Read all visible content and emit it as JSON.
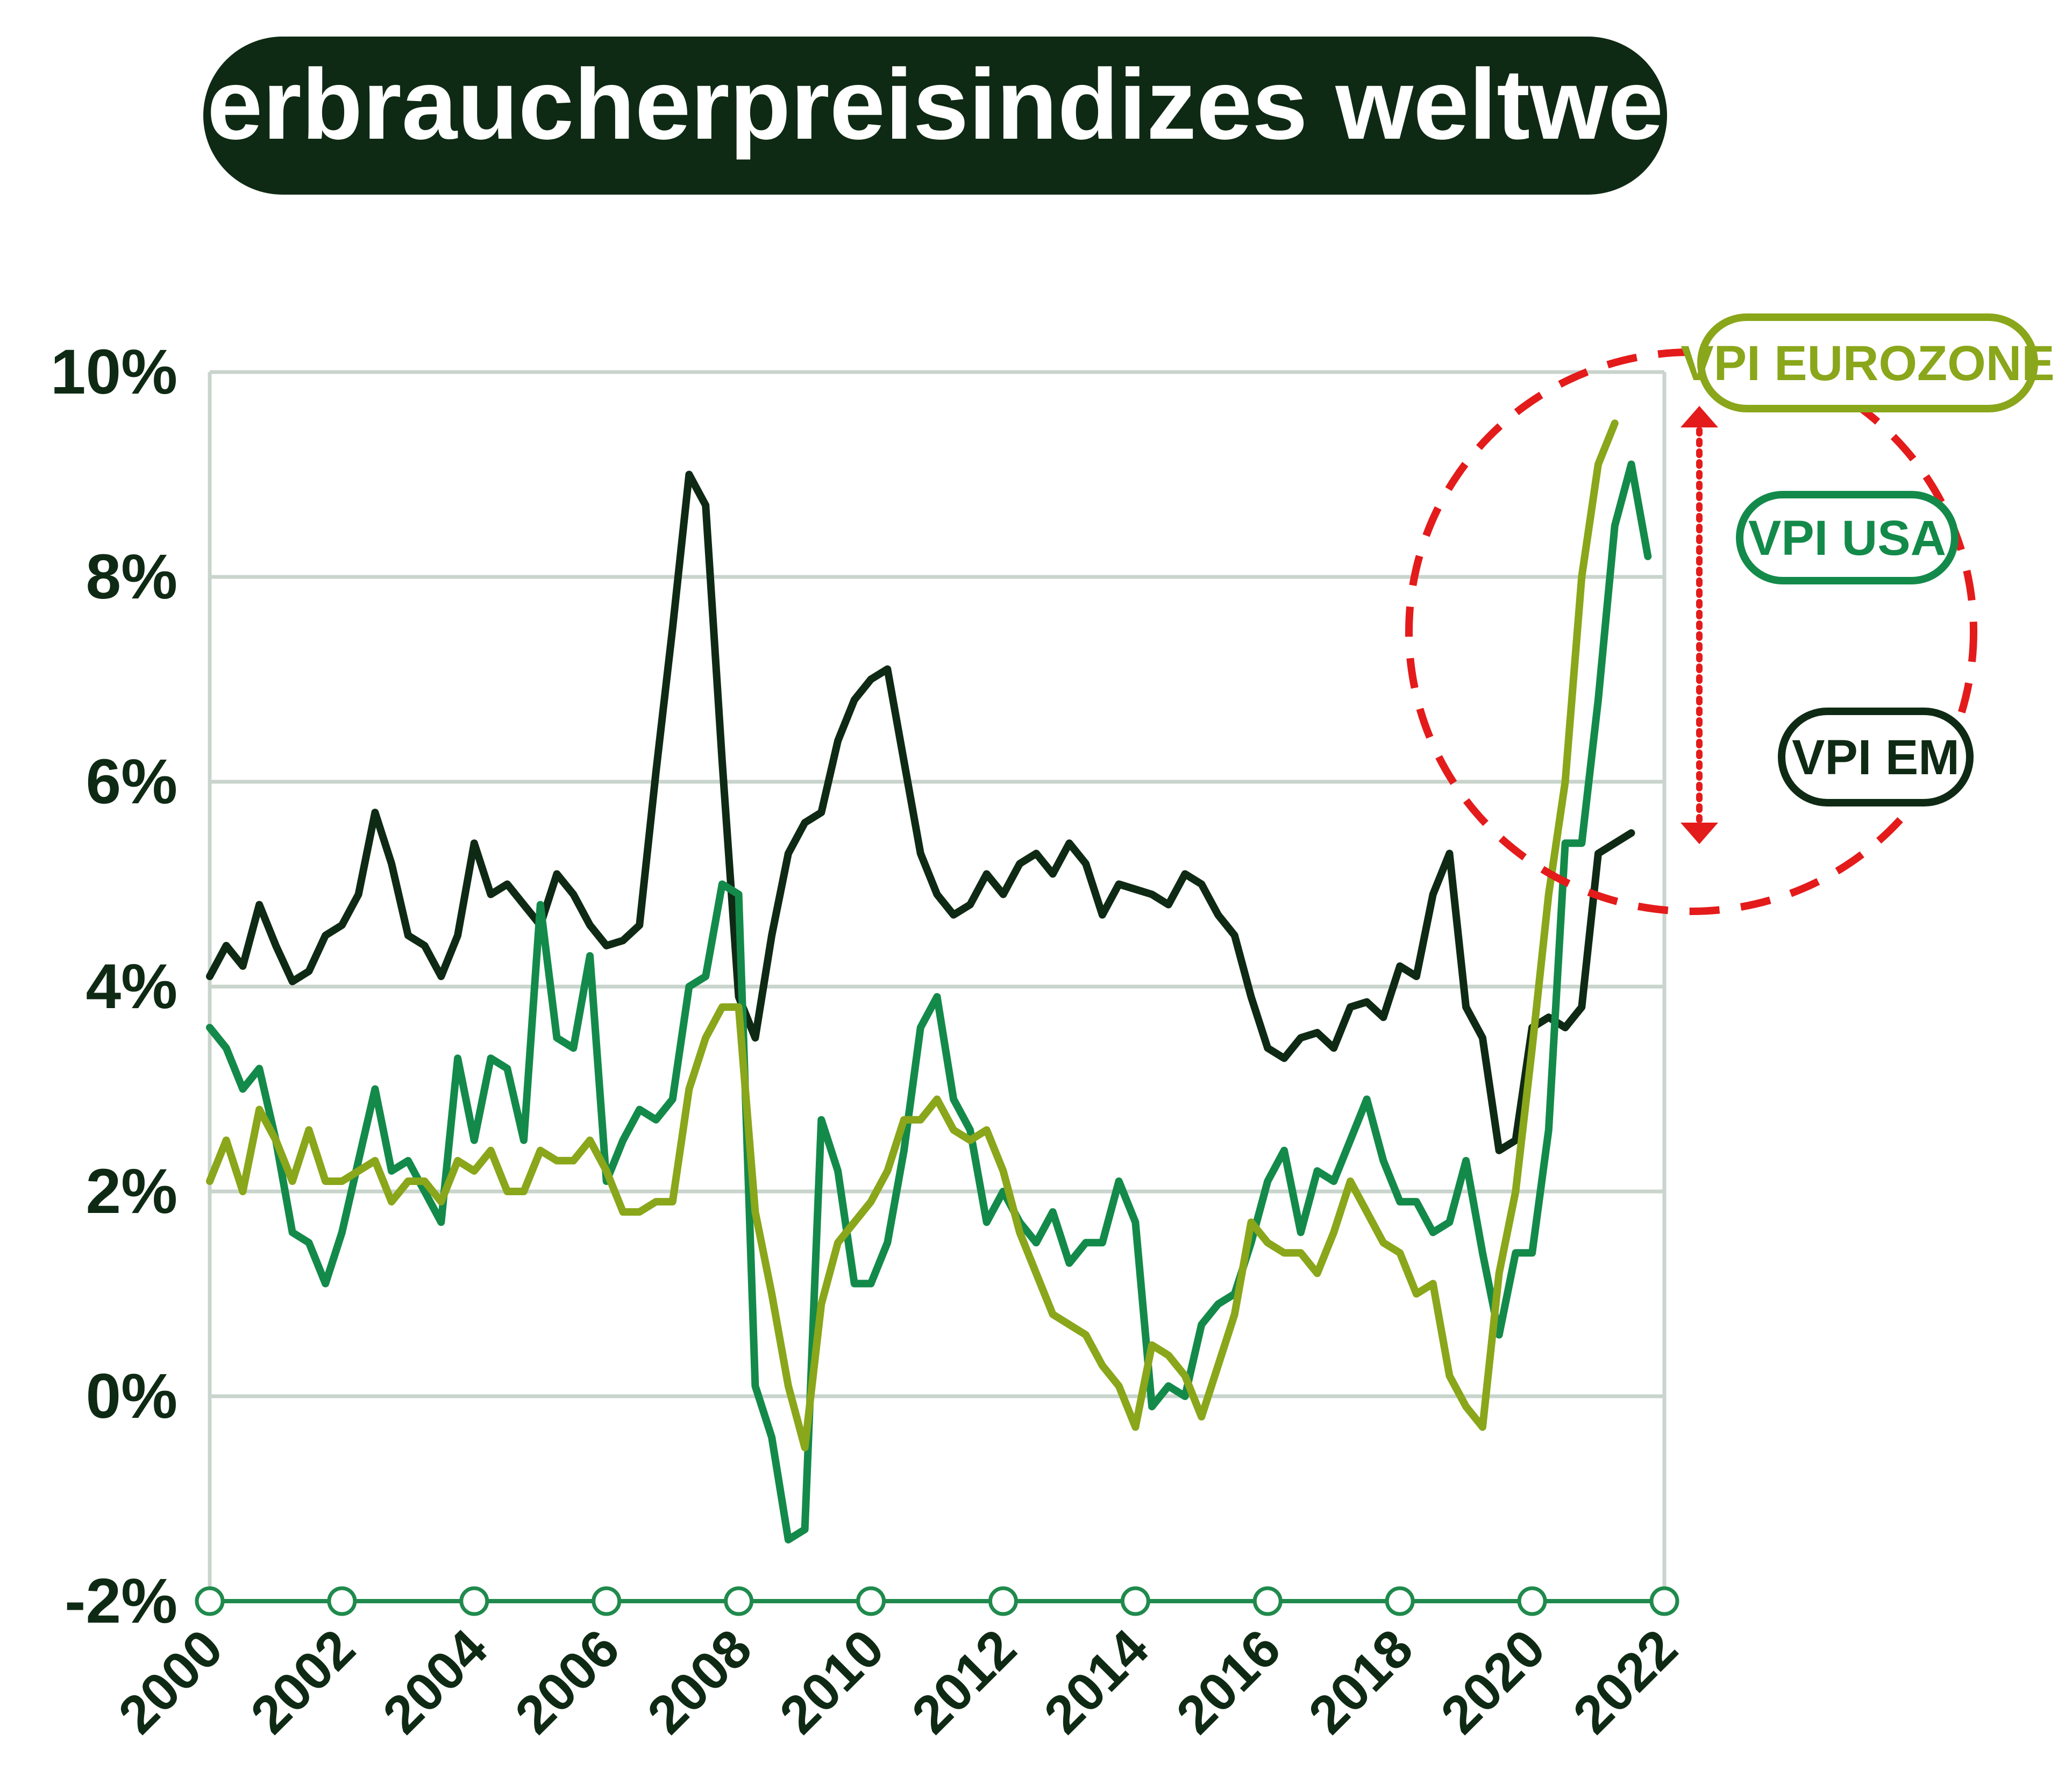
{
  "title": "Verbraucherpreisindizes weltweit",
  "colors": {
    "title_bg": "#0f2a14",
    "title_text": "#ffffff",
    "em": "#0f2a14",
    "usa": "#138a4a",
    "eurozone": "#8aa61a",
    "grid": "#c8d4cc",
    "axis": "#1f8a4c",
    "highlight": "#e41b1b"
  },
  "chart_data": {
    "type": "line",
    "title": "Verbraucherpreisindizes weltweit",
    "xlabel": "",
    "ylabel": "",
    "xlim": [
      2000,
      2022
    ],
    "ylim": [
      -2,
      10
    ],
    "y_ticks": [
      10,
      8,
      6,
      4,
      2,
      0,
      -2
    ],
    "y_tick_labels": [
      "10%",
      "8%",
      "6%",
      "4%",
      "2%",
      "0%",
      "-2%"
    ],
    "x_ticks": [
      2000,
      2002,
      2004,
      2006,
      2008,
      2010,
      2012,
      2014,
      2016,
      2018,
      2020,
      2022
    ],
    "x_tick_labels": [
      "2000",
      "2002",
      "2004",
      "2006",
      "2008",
      "2010",
      "2012",
      "2014",
      "2016",
      "2018",
      "2020",
      "2022"
    ],
    "grid": true,
    "series": [
      {
        "name": "VPI EM",
        "color": "#0f2a14",
        "points": [
          [
            2000.0,
            4.1
          ],
          [
            2000.25,
            4.4
          ],
          [
            2000.5,
            4.2
          ],
          [
            2000.75,
            4.8
          ],
          [
            2001.0,
            4.4
          ],
          [
            2001.25,
            4.05
          ],
          [
            2001.5,
            4.15
          ],
          [
            2001.75,
            4.5
          ],
          [
            2002.0,
            4.6
          ],
          [
            2002.25,
            4.9
          ],
          [
            2002.5,
            5.7
          ],
          [
            2002.75,
            5.2
          ],
          [
            2003.0,
            4.5
          ],
          [
            2003.25,
            4.4
          ],
          [
            2003.5,
            4.1
          ],
          [
            2003.75,
            4.5
          ],
          [
            2004.0,
            5.4
          ],
          [
            2004.25,
            4.9
          ],
          [
            2004.5,
            5.0
          ],
          [
            2004.75,
            4.8
          ],
          [
            2005.0,
            4.6
          ],
          [
            2005.25,
            5.1
          ],
          [
            2005.5,
            4.9
          ],
          [
            2005.75,
            4.6
          ],
          [
            2006.0,
            4.4
          ],
          [
            2006.25,
            4.45
          ],
          [
            2006.5,
            4.6
          ],
          [
            2006.75,
            6.1
          ],
          [
            2007.0,
            7.5
          ],
          [
            2007.25,
            9.0
          ],
          [
            2007.5,
            8.7
          ],
          [
            2007.75,
            6.2
          ],
          [
            2008.0,
            3.9
          ],
          [
            2008.25,
            3.5
          ],
          [
            2008.5,
            4.5
          ],
          [
            2008.75,
            5.3
          ],
          [
            2009.0,
            5.6
          ],
          [
            2009.25,
            5.7
          ],
          [
            2009.5,
            6.4
          ],
          [
            2009.75,
            6.8
          ],
          [
            2010.0,
            7.0
          ],
          [
            2010.25,
            7.1
          ],
          [
            2010.5,
            6.2
          ],
          [
            2010.75,
            5.3
          ],
          [
            2011.0,
            4.9
          ],
          [
            2011.25,
            4.7
          ],
          [
            2011.5,
            4.8
          ],
          [
            2011.75,
            5.1
          ],
          [
            2012.0,
            4.9
          ],
          [
            2012.25,
            5.2
          ],
          [
            2012.5,
            5.3
          ],
          [
            2012.75,
            5.1
          ],
          [
            2013.0,
            5.4
          ],
          [
            2013.25,
            5.2
          ],
          [
            2013.5,
            4.7
          ],
          [
            2013.75,
            5.0
          ],
          [
            2014.0,
            4.95
          ],
          [
            2014.25,
            4.9
          ],
          [
            2014.5,
            4.8
          ],
          [
            2014.75,
            5.1
          ],
          [
            2015.0,
            5.0
          ],
          [
            2015.25,
            4.7
          ],
          [
            2015.5,
            4.5
          ],
          [
            2015.75,
            3.9
          ],
          [
            2016.0,
            3.4
          ],
          [
            2016.25,
            3.3
          ],
          [
            2016.5,
            3.5
          ],
          [
            2016.75,
            3.55
          ],
          [
            2017.0,
            3.4
          ],
          [
            2017.25,
            3.8
          ],
          [
            2017.5,
            3.85
          ],
          [
            2017.75,
            3.7
          ],
          [
            2018.0,
            4.2
          ],
          [
            2018.25,
            4.1
          ],
          [
            2018.5,
            4.9
          ],
          [
            2018.75,
            5.3
          ],
          [
            2019.0,
            3.8
          ],
          [
            2019.25,
            3.5
          ],
          [
            2019.5,
            2.4
          ],
          [
            2019.75,
            2.5
          ],
          [
            2020.0,
            3.6
          ],
          [
            2020.25,
            3.7
          ],
          [
            2020.5,
            3.6
          ],
          [
            2020.75,
            3.8
          ],
          [
            2021.0,
            5.3
          ],
          [
            2021.25,
            5.4
          ],
          [
            2021.5,
            5.5
          ]
        ]
      },
      {
        "name": "VPI USA",
        "color": "#138a4a",
        "points": [
          [
            2000.0,
            3.6
          ],
          [
            2000.25,
            3.4
          ],
          [
            2000.5,
            3.0
          ],
          [
            2000.75,
            3.2
          ],
          [
            2001.0,
            2.5
          ],
          [
            2001.25,
            1.6
          ],
          [
            2001.5,
            1.5
          ],
          [
            2001.75,
            1.1
          ],
          [
            2002.0,
            1.6
          ],
          [
            2002.25,
            2.3
          ],
          [
            2002.5,
            3.0
          ],
          [
            2002.75,
            2.2
          ],
          [
            2003.0,
            2.3
          ],
          [
            2003.25,
            2.0
          ],
          [
            2003.5,
            1.7
          ],
          [
            2003.75,
            3.3
          ],
          [
            2004.0,
            2.5
          ],
          [
            2004.25,
            3.3
          ],
          [
            2004.5,
            3.2
          ],
          [
            2004.75,
            2.5
          ],
          [
            2005.0,
            4.8
          ],
          [
            2005.25,
            3.5
          ],
          [
            2005.5,
            3.4
          ],
          [
            2005.75,
            4.3
          ],
          [
            2006.0,
            2.1
          ],
          [
            2006.25,
            2.5
          ],
          [
            2006.5,
            2.8
          ],
          [
            2006.75,
            2.7
          ],
          [
            2007.0,
            2.9
          ],
          [
            2007.25,
            4.0
          ],
          [
            2007.5,
            4.1
          ],
          [
            2007.75,
            5.0
          ],
          [
            2008.0,
            4.9
          ],
          [
            2008.25,
            0.1
          ],
          [
            2008.5,
            -0.4
          ],
          [
            2008.75,
            -1.4
          ],
          [
            2009.0,
            -1.3
          ],
          [
            2009.25,
            2.7
          ],
          [
            2009.5,
            2.2
          ],
          [
            2009.75,
            1.1
          ],
          [
            2010.0,
            1.1
          ],
          [
            2010.25,
            1.5
          ],
          [
            2010.5,
            2.4
          ],
          [
            2010.75,
            3.6
          ],
          [
            2011.0,
            3.9
          ],
          [
            2011.25,
            2.9
          ],
          [
            2011.5,
            2.6
          ],
          [
            2011.75,
            1.7
          ],
          [
            2012.0,
            2.0
          ],
          [
            2012.25,
            1.7
          ],
          [
            2012.5,
            1.5
          ],
          [
            2012.75,
            1.8
          ],
          [
            2013.0,
            1.3
          ],
          [
            2013.25,
            1.5
          ],
          [
            2013.5,
            1.5
          ],
          [
            2013.75,
            2.1
          ],
          [
            2014.0,
            1.7
          ],
          [
            2014.25,
            -0.1
          ],
          [
            2014.5,
            0.1
          ],
          [
            2014.75,
            0.0
          ],
          [
            2015.0,
            0.7
          ],
          [
            2015.25,
            0.9
          ],
          [
            2015.5,
            1.0
          ],
          [
            2015.75,
            1.5
          ],
          [
            2016.0,
            2.1
          ],
          [
            2016.25,
            2.4
          ],
          [
            2016.5,
            1.6
          ],
          [
            2016.75,
            2.2
          ],
          [
            2017.0,
            2.1
          ],
          [
            2017.25,
            2.5
          ],
          [
            2017.5,
            2.9
          ],
          [
            2017.75,
            2.3
          ],
          [
            2018.0,
            1.9
          ],
          [
            2018.25,
            1.9
          ],
          [
            2018.5,
            1.6
          ],
          [
            2018.75,
            1.7
          ],
          [
            2019.0,
            2.3
          ],
          [
            2019.25,
            1.4
          ],
          [
            2019.5,
            0.6
          ],
          [
            2019.75,
            1.4
          ],
          [
            2020.0,
            1.4
          ],
          [
            2020.25,
            2.6
          ],
          [
            2020.5,
            5.4
          ],
          [
            2020.75,
            5.4
          ],
          [
            2021.0,
            6.8
          ],
          [
            2021.25,
            8.5
          ],
          [
            2021.5,
            9.1
          ],
          [
            2021.75,
            8.2
          ]
        ]
      },
      {
        "name": "VPI EUROZONE",
        "color": "#8aa61a",
        "points": [
          [
            2000.0,
            2.1
          ],
          [
            2000.25,
            2.5
          ],
          [
            2000.5,
            2.0
          ],
          [
            2000.75,
            2.8
          ],
          [
            2001.0,
            2.5
          ],
          [
            2001.25,
            2.1
          ],
          [
            2001.5,
            2.6
          ],
          [
            2001.75,
            2.1
          ],
          [
            2002.0,
            2.1
          ],
          [
            2002.25,
            2.2
          ],
          [
            2002.5,
            2.3
          ],
          [
            2002.75,
            1.9
          ],
          [
            2003.0,
            2.1
          ],
          [
            2003.25,
            2.1
          ],
          [
            2003.5,
            1.9
          ],
          [
            2003.75,
            2.3
          ],
          [
            2004.0,
            2.2
          ],
          [
            2004.25,
            2.4
          ],
          [
            2004.5,
            2.0
          ],
          [
            2004.75,
            2.0
          ],
          [
            2005.0,
            2.4
          ],
          [
            2005.25,
            2.3
          ],
          [
            2005.5,
            2.3
          ],
          [
            2005.75,
            2.5
          ],
          [
            2006.0,
            2.2
          ],
          [
            2006.25,
            1.8
          ],
          [
            2006.5,
            1.8
          ],
          [
            2006.75,
            1.9
          ],
          [
            2007.0,
            1.9
          ],
          [
            2007.25,
            3.0
          ],
          [
            2007.5,
            3.5
          ],
          [
            2007.75,
            3.8
          ],
          [
            2008.0,
            3.8
          ],
          [
            2008.25,
            1.8
          ],
          [
            2008.5,
            1.0
          ],
          [
            2008.75,
            0.1
          ],
          [
            2009.0,
            -0.5
          ],
          [
            2009.25,
            0.9
          ],
          [
            2009.5,
            1.5
          ],
          [
            2009.75,
            1.7
          ],
          [
            2010.0,
            1.9
          ],
          [
            2010.25,
            2.2
          ],
          [
            2010.5,
            2.7
          ],
          [
            2010.75,
            2.7
          ],
          [
            2011.0,
            2.9
          ],
          [
            2011.25,
            2.6
          ],
          [
            2011.5,
            2.5
          ],
          [
            2011.75,
            2.6
          ],
          [
            2012.0,
            2.2
          ],
          [
            2012.25,
            1.6
          ],
          [
            2012.5,
            1.2
          ],
          [
            2012.75,
            0.8
          ],
          [
            2013.0,
            0.7
          ],
          [
            2013.25,
            0.6
          ],
          [
            2013.5,
            0.3
          ],
          [
            2013.75,
            0.1
          ],
          [
            2014.0,
            -0.3
          ],
          [
            2014.25,
            0.5
          ],
          [
            2014.5,
            0.4
          ],
          [
            2014.75,
            0.2
          ],
          [
            2015.0,
            -0.2
          ],
          [
            2015.25,
            0.3
          ],
          [
            2015.5,
            0.8
          ],
          [
            2015.75,
            1.7
          ],
          [
            2016.0,
            1.5
          ],
          [
            2016.25,
            1.4
          ],
          [
            2016.5,
            1.4
          ],
          [
            2016.75,
            1.2
          ],
          [
            2017.0,
            1.6
          ],
          [
            2017.25,
            2.1
          ],
          [
            2017.5,
            1.8
          ],
          [
            2017.75,
            1.5
          ],
          [
            2018.0,
            1.4
          ],
          [
            2018.25,
            1.0
          ],
          [
            2018.5,
            1.1
          ],
          [
            2018.75,
            0.2
          ],
          [
            2019.0,
            -0.1
          ],
          [
            2019.25,
            -0.3
          ],
          [
            2019.5,
            1.2
          ],
          [
            2019.75,
            2.0
          ],
          [
            2020.0,
            3.4
          ],
          [
            2020.25,
            4.9
          ],
          [
            2020.5,
            6.0
          ],
          [
            2020.75,
            8.0
          ],
          [
            2021.0,
            9.1
          ],
          [
            2021.25,
            9.5
          ]
        ]
      }
    ],
    "legend": [
      {
        "label": "VPI EUROZONE",
        "color": "#8aa61a"
      },
      {
        "label": "VPI USA",
        "color": "#138a4a"
      },
      {
        "label": "VPI EM",
        "color": "#0f2a14"
      }
    ]
  }
}
